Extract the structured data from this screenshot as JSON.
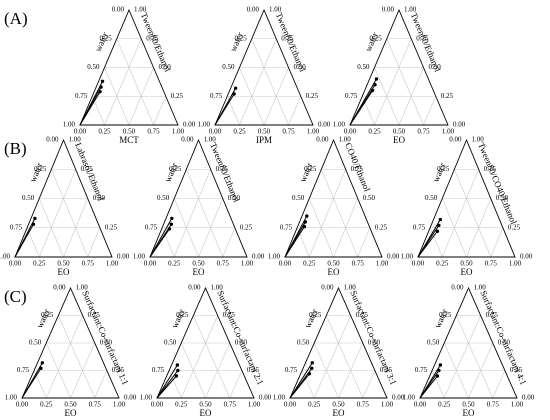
{
  "chart_data": [
    {
      "type": "ternary",
      "panel": "(A)",
      "left_label": "water",
      "right_label": "Tween80/Ethanol",
      "bottom_label": "MCT",
      "ticks": [
        {
          "value": 0,
          "label": "0.00"
        },
        {
          "value": 0.25,
          "label": "0.25"
        },
        {
          "value": 0.5,
          "label": "0.50"
        },
        {
          "value": 0.75,
          "label": "0.75"
        },
        {
          "value": 1,
          "label": "1.00"
        }
      ],
      "water": [
        0.58,
        0.62,
        0.65
      ],
      "oil": [
        0.04,
        0.05,
        0.06
      ],
      "surfactant": [
        0.38,
        0.33,
        0.29
      ]
    },
    {
      "type": "ternary",
      "left_label": "water",
      "right_label": "Tween80/Ethanol",
      "bottom_label": "IPM",
      "ticks": [
        {
          "value": 0,
          "label": "0.00"
        },
        {
          "value": 0.25,
          "label": "0.25"
        },
        {
          "value": 0.5,
          "label": "0.50"
        },
        {
          "value": 0.75,
          "label": "0.75"
        },
        {
          "value": 1,
          "label": "1.00"
        }
      ],
      "water": [
        0.63,
        0.67
      ],
      "oil": [
        0.05,
        0.06
      ],
      "surfactant": [
        0.32,
        0.27
      ]
    },
    {
      "type": "ternary",
      "left_label": "water",
      "right_label": "Tween80/Ethanol",
      "bottom_label": "EO",
      "ticks": [
        {
          "value": 0,
          "label": "0.00"
        },
        {
          "value": 0.25,
          "label": "0.25"
        },
        {
          "value": 0.5,
          "label": "0.50"
        },
        {
          "value": 0.75,
          "label": "0.75"
        },
        {
          "value": 1,
          "label": "1.00"
        }
      ],
      "water": [
        0.53,
        0.57,
        0.62
      ],
      "oil": [
        0.07,
        0.08,
        0.08
      ],
      "surfactant": [
        0.4,
        0.35,
        0.3
      ]
    },
    {
      "type": "ternary",
      "panel": "(B)",
      "left_label": "water",
      "right_label": "Labrasol/Ethanol",
      "bottom_label": "EO",
      "ticks": [
        {
          "value": 0,
          "label": "0.00"
        },
        {
          "value": 0.25,
          "label": "0.25"
        },
        {
          "value": 0.5,
          "label": "0.50"
        },
        {
          "value": 0.75,
          "label": "0.75"
        },
        {
          "value": 1,
          "label": "1.00"
        }
      ],
      "water": [
        0.63,
        0.67
      ],
      "oil": [
        0.04,
        0.05
      ],
      "surfactant": [
        0.33,
        0.28
      ]
    },
    {
      "type": "ternary",
      "left_label": "water",
      "right_label": "Tween80/Ethanol",
      "bottom_label": "EO",
      "ticks": [
        {
          "value": 0,
          "label": "0.00"
        },
        {
          "value": 0.25,
          "label": "0.25"
        },
        {
          "value": 0.5,
          "label": "0.50"
        },
        {
          "value": 0.75,
          "label": "0.75"
        },
        {
          "value": 1,
          "label": "1.00"
        }
      ],
      "water": [
        0.61,
        0.64,
        0.68
      ],
      "oil": [
        0.06,
        0.08,
        0.08
      ],
      "surfactant": [
        0.33,
        0.28,
        0.24
      ]
    },
    {
      "type": "ternary",
      "left_label": "water",
      "right_label": "CO40/Ethanol",
      "bottom_label": "EO",
      "ticks": [
        {
          "value": 0,
          "label": "0.00"
        },
        {
          "value": 0.25,
          "label": "0.25"
        },
        {
          "value": 0.5,
          "label": "0.50"
        },
        {
          "value": 0.75,
          "label": "0.75"
        },
        {
          "value": 1,
          "label": "1.00"
        }
      ],
      "water": [
        0.6,
        0.64,
        0.67
      ],
      "oil": [
        0.05,
        0.06,
        0.07
      ],
      "surfactant": [
        0.35,
        0.3,
        0.26
      ]
    },
    {
      "type": "ternary",
      "left_label": "water",
      "right_label": "Tween80/CO40/Ethanol",
      "bottom_label": "EO",
      "ticks": [
        {
          "value": 0,
          "label": "0.00"
        },
        {
          "value": 0.25,
          "label": "0.25"
        },
        {
          "value": 0.5,
          "label": "0.50"
        },
        {
          "value": 0.75,
          "label": "0.75"
        },
        {
          "value": 1,
          "label": "1.00"
        }
      ],
      "water": [
        0.61,
        0.65,
        0.69
      ],
      "oil": [
        0.07,
        0.08,
        0.09
      ],
      "surfactant": [
        0.32,
        0.27,
        0.22
      ]
    },
    {
      "type": "ternary",
      "panel": "(C)",
      "left_label": "water",
      "right_label": "Surfactant:Co-surfactant 1:1",
      "bottom_label": "EO",
      "ticks": [
        {
          "value": 0,
          "label": "0.00"
        },
        {
          "value": 0.25,
          "label": "0.25"
        },
        {
          "value": 0.5,
          "label": "0.50"
        },
        {
          "value": 0.75,
          "label": "0.75"
        },
        {
          "value": 1,
          "label": "1.00"
        }
      ],
      "water": [
        0.63,
        0.67
      ],
      "oil": [
        0.05,
        0.06
      ],
      "surfactant": [
        0.32,
        0.27
      ]
    },
    {
      "type": "ternary",
      "left_label": "water",
      "right_label": "Surfactant:Co-surfactant 2:1",
      "bottom_label": "EO",
      "ticks": [
        {
          "value": 0,
          "label": "0.00"
        },
        {
          "value": 0.25,
          "label": "0.25"
        },
        {
          "value": 0.5,
          "label": "0.50"
        },
        {
          "value": 0.75,
          "label": "0.75"
        },
        {
          "value": 1,
          "label": "1.00"
        }
      ],
      "water": [
        0.64,
        0.66,
        0.7
      ],
      "oil": [
        0.06,
        0.09,
        0.1
      ],
      "surfactant": [
        0.3,
        0.25,
        0.2
      ]
    },
    {
      "type": "ternary",
      "left_label": "water",
      "right_label": "Surfactant:Co-surfactant 3:1",
      "bottom_label": "EO",
      "ticks": [
        {
          "value": 0,
          "label": "0.00"
        },
        {
          "value": 0.25,
          "label": "0.25"
        },
        {
          "value": 0.5,
          "label": "0.50"
        },
        {
          "value": 0.75,
          "label": "0.75"
        },
        {
          "value": 1,
          "label": "1.00"
        }
      ],
      "water": [
        0.61,
        0.64,
        0.69
      ],
      "oil": [
        0.07,
        0.09,
        0.09
      ],
      "surfactant": [
        0.32,
        0.27,
        0.22
      ]
    },
    {
      "type": "ternary",
      "left_label": "water",
      "right_label": "Surfactant:Co-surfactant 4:1",
      "bottom_label": "EO",
      "ticks": [
        {
          "value": 0,
          "label": "0.00"
        },
        {
          "value": 0.25,
          "label": "0.25"
        },
        {
          "value": 0.5,
          "label": "0.50"
        },
        {
          "value": 0.75,
          "label": "0.75"
        },
        {
          "value": 1,
          "label": "1.00"
        }
      ],
      "water": [
        0.64,
        0.68,
        0.72
      ],
      "oil": [
        0.06,
        0.07,
        0.08
      ],
      "surfactant": [
        0.3,
        0.25,
        0.2
      ]
    }
  ]
}
